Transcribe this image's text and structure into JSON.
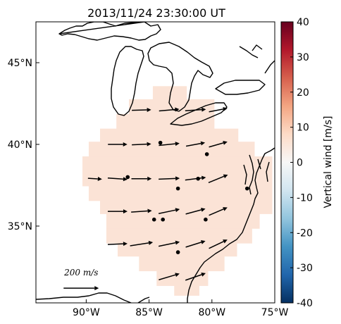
{
  "chart_data": {
    "type": "scatter",
    "title": "2013/11/24 23:30:00 UT",
    "map": {
      "lon_range": [
        -94,
        -75
      ],
      "lat_range": [
        30.3,
        47.5
      ],
      "x_ticks": [
        {
          "value": -90,
          "label": "90°W"
        },
        {
          "value": -85,
          "label": "85°W"
        },
        {
          "value": -80,
          "label": "80°W"
        },
        {
          "value": -75,
          "label": "75°W"
        }
      ],
      "y_ticks": [
        {
          "value": 45,
          "label": "45°N"
        },
        {
          "value": 40,
          "label": "40°N"
        },
        {
          "value": 35,
          "label": "35°N"
        }
      ],
      "background_color": "#ffffff",
      "coastline_color": "#000000"
    },
    "colorbar": {
      "label": "Vertical wind [m/s]",
      "range": [
        -40,
        40
      ],
      "ticks": [
        40,
        30,
        20,
        10,
        0,
        -10,
        -20,
        -30,
        -40
      ],
      "colormap": "RdBu_r",
      "colors": [
        "#053061",
        "#2166ac",
        "#4393c3",
        "#92c5de",
        "#d1e5f0",
        "#f7f7f7",
        "#fddbc7",
        "#f4a582",
        "#d6604d",
        "#b2182b",
        "#67001f"
      ]
    },
    "vertical_wind_field": {
      "value_mps": 5,
      "fill_color": "#fbe3d6",
      "lat_rows": [
        {
          "lat": 43.1,
          "lon_min": -84.7,
          "lon_max": -82.0
        },
        {
          "lat": 42.3,
          "lon_min": -86.6,
          "lon_max": -79.8
        },
        {
          "lat": 41.4,
          "lon_min": -87.6,
          "lon_max": -79.8
        },
        {
          "lat": 40.5,
          "lon_min": -88.9,
          "lon_max": -77.9
        },
        {
          "lat": 39.7,
          "lon_min": -89.8,
          "lon_max": -76.6
        },
        {
          "lat": 38.8,
          "lon_min": -90.3,
          "lon_max": -75.2
        },
        {
          "lat": 37.9,
          "lon_min": -90.3,
          "lon_max": -75.2
        },
        {
          "lat": 37.0,
          "lon_min": -89.8,
          "lon_max": -75.2
        },
        {
          "lat": 36.2,
          "lon_min": -88.9,
          "lon_max": -75.2
        },
        {
          "lat": 35.3,
          "lon_min": -88.4,
          "lon_max": -76.2
        },
        {
          "lat": 34.4,
          "lon_min": -88.4,
          "lon_max": -76.8
        },
        {
          "lat": 33.6,
          "lon_min": -87.5,
          "lon_max": -78.0
        },
        {
          "lat": 32.7,
          "lon_min": -85.8,
          "lon_max": -79.0
        },
        {
          "lat": 31.8,
          "lon_min": -84.4,
          "lon_max": -80.3
        },
        {
          "lat": 31.2,
          "lon_min": -83.0,
          "lon_max": -81.0
        }
      ]
    },
    "wind_vectors": [
      {
        "lon": -85.6,
        "lat": 42.1,
        "u": 110,
        "v": 3
      },
      {
        "lon": -83.4,
        "lat": 42.1,
        "u": 115,
        "v": 10
      },
      {
        "lon": -81.3,
        "lat": 42.1,
        "u": 118,
        "v": 8
      },
      {
        "lon": -79.5,
        "lat": 42.1,
        "u": 105,
        "v": 20
      },
      {
        "lon": -87.5,
        "lat": 40.0,
        "u": 110,
        "v": 0
      },
      {
        "lon": -85.6,
        "lat": 40.0,
        "u": 110,
        "v": 5
      },
      {
        "lon": -83.4,
        "lat": 40.0,
        "u": 118,
        "v": 12
      },
      {
        "lon": -81.3,
        "lat": 40.0,
        "u": 108,
        "v": 20
      },
      {
        "lon": -79.5,
        "lat": 40.0,
        "u": 105,
        "v": 30
      },
      {
        "lon": -89.3,
        "lat": 37.9,
        "u": 80,
        "v": -5
      },
      {
        "lon": -87.5,
        "lat": 37.9,
        "u": 112,
        "v": -8
      },
      {
        "lon": -85.6,
        "lat": 37.9,
        "u": 115,
        "v": 0
      },
      {
        "lon": -83.4,
        "lat": 37.9,
        "u": 120,
        "v": 5
      },
      {
        "lon": -81.3,
        "lat": 37.9,
        "u": 118,
        "v": 15
      },
      {
        "lon": -79.5,
        "lat": 37.9,
        "u": 110,
        "v": 45
      },
      {
        "lon": -87.5,
        "lat": 35.9,
        "u": 112,
        "v": 0
      },
      {
        "lon": -85.6,
        "lat": 35.9,
        "u": 118,
        "v": 8
      },
      {
        "lon": -83.4,
        "lat": 35.9,
        "u": 120,
        "v": 25
      },
      {
        "lon": -81.3,
        "lat": 35.9,
        "u": 112,
        "v": 30
      },
      {
        "lon": -79.5,
        "lat": 35.9,
        "u": 105,
        "v": 45
      },
      {
        "lon": -87.5,
        "lat": 33.9,
        "u": 112,
        "v": 5
      },
      {
        "lon": -85.6,
        "lat": 33.9,
        "u": 130,
        "v": 20
      },
      {
        "lon": -83.4,
        "lat": 33.9,
        "u": 120,
        "v": 25
      },
      {
        "lon": -81.3,
        "lat": 33.9,
        "u": 112,
        "v": 35
      },
      {
        "lon": -79.5,
        "lat": 33.9,
        "u": 105,
        "v": 50
      },
      {
        "lon": -83.4,
        "lat": 31.9,
        "u": 118,
        "v": 35
      },
      {
        "lon": -81.3,
        "lat": 31.9,
        "u": 115,
        "v": 40
      }
    ],
    "stations": [
      {
        "lon": -84.1,
        "lat": 40.1
      },
      {
        "lon": -80.4,
        "lat": 39.4
      },
      {
        "lon": -86.7,
        "lat": 38.0
      },
      {
        "lon": -82.7,
        "lat": 37.3
      },
      {
        "lon": -81.1,
        "lat": 37.9
      },
      {
        "lon": -77.2,
        "lat": 37.3
      },
      {
        "lon": -84.6,
        "lat": 35.4
      },
      {
        "lon": -83.9,
        "lat": 35.4
      },
      {
        "lon": -80.5,
        "lat": 35.4
      },
      {
        "lon": -82.7,
        "lat": 33.4
      }
    ],
    "scale_arrow": {
      "value_mps": 200,
      "label": "200 m/s",
      "lon": -91.8,
      "lat": 31.2
    }
  }
}
